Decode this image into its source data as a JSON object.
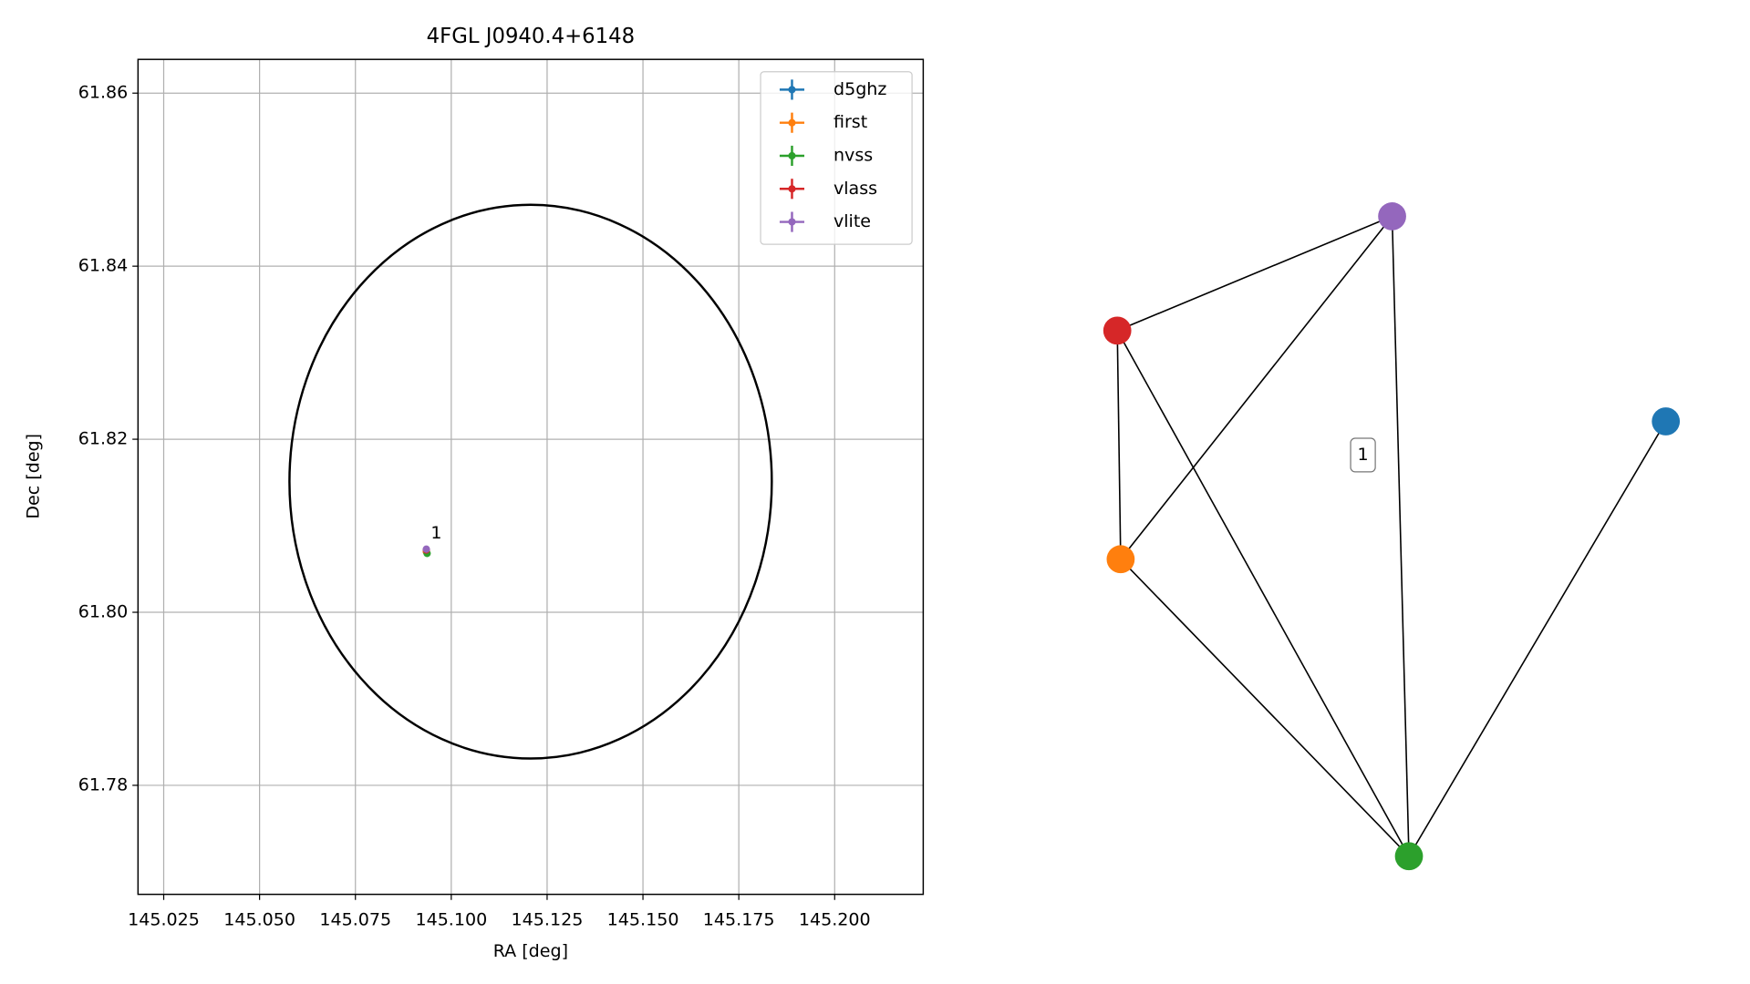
{
  "chart_data": [
    {
      "type": "scatter",
      "title": "4FGL J0940.4+6148",
      "x_label": "RA [deg]",
      "y_label": "Dec [deg]",
      "xlim": [
        145.0183,
        145.2231
      ],
      "ylim": [
        61.7674,
        61.8639
      ],
      "xticks": [
        145.025,
        {
          "value": 145.05,
          "label": "145.050"
        },
        145.075,
        {
          "value": 145.1,
          "label": "145.100"
        },
        145.125,
        {
          "value": 145.15,
          "label": "145.150"
        },
        145.175,
        {
          "value": 145.2,
          "label": "145.200"
        }
      ],
      "yticks": [
        {
          "value": 61.78,
          "label": "61.78"
        },
        {
          "value": 61.8,
          "label": "61.80"
        },
        61.82,
        61.84,
        61.86
      ],
      "grid": true,
      "legend": "upper right",
      "series": [
        {
          "name": "d5ghz",
          "color": "#1f77b4",
          "x": [
            145.0935
          ],
          "values": [
            61.807
          ]
        },
        {
          "name": "first",
          "color": "#ff7f0e",
          "x": [
            145.0935
          ],
          "values": [
            61.807
          ]
        },
        {
          "name": "nvss",
          "color": "#2ca02c",
          "x": [
            145.0937
          ],
          "values": [
            61.8068
          ]
        },
        {
          "name": "vlass",
          "color": "#d62728",
          "x": [
            145.0935
          ],
          "values": [
            61.8072
          ]
        },
        {
          "name": "vlite",
          "color": "#9467bd",
          "x": [
            145.0935
          ],
          "values": [
            61.8073
          ]
        }
      ],
      "annotations": [
        {
          "text": "1",
          "x": 145.0935,
          "y": 61.8073
        }
      ],
      "ellipse": {
        "center": [
          145.1207,
          61.8151
        ],
        "width": 0.1258,
        "height": 0.064,
        "color": "#000000"
      }
    },
    {
      "type": "graph",
      "nodes": [
        {
          "name": "d5ghz",
          "color": "#1f77b4"
        },
        {
          "name": "first",
          "color": "#ff7f0e"
        },
        {
          "name": "nvss",
          "color": "#2ca02c"
        },
        {
          "name": "vlass",
          "color": "#d62728"
        },
        {
          "name": "vlite",
          "color": "#9467bd"
        }
      ],
      "edges": [
        [
          4,
          3
        ],
        [
          4,
          1
        ],
        [
          4,
          2
        ],
        [
          3,
          1
        ],
        [
          3,
          2
        ],
        [
          1,
          2
        ],
        [
          0,
          2
        ]
      ],
      "label": "1"
    }
  ]
}
